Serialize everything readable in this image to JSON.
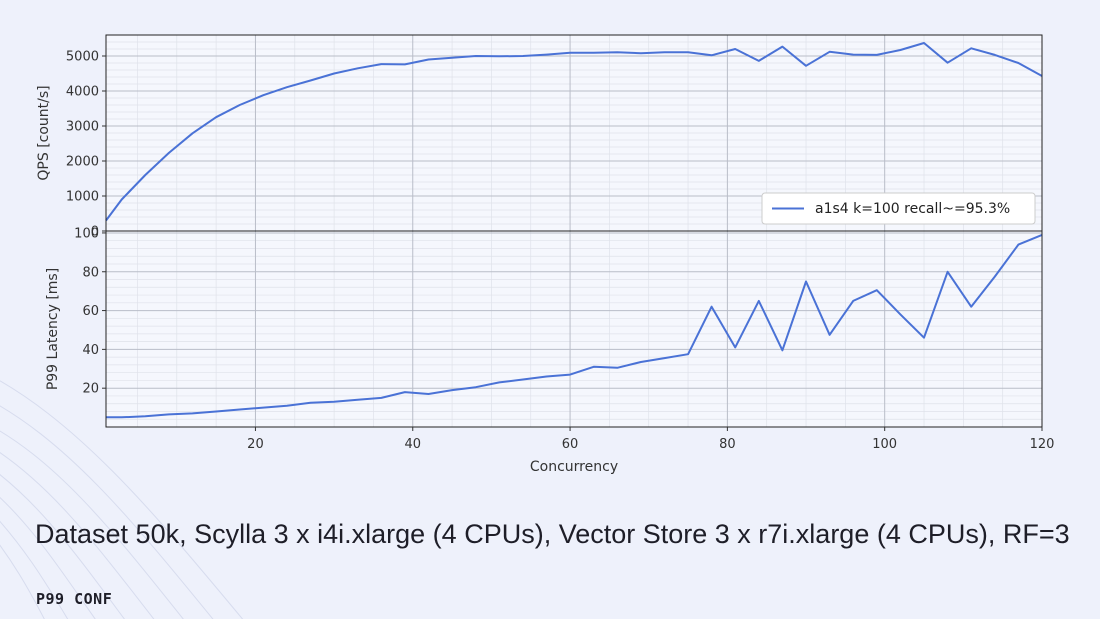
{
  "chart_data": {
    "type": "line",
    "xlabel": "Concurrency",
    "xlim": [
      1,
      120
    ],
    "x_ticks": [
      20,
      40,
      60,
      80,
      100,
      120
    ],
    "grid": true,
    "panels": [
      {
        "ylabel": "QPS [count/s]",
        "ylim": [
          0,
          5600
        ],
        "y_ticks": [
          0,
          1000,
          2000,
          3000,
          4000,
          5000
        ],
        "legend_position": "lower-right",
        "series": [
          {
            "name": "a1s4 k=100 recall~=95.3%",
            "color": "#4a72d6",
            "x": [
              1,
              3,
              6,
              9,
              12,
              15,
              18,
              21,
              24,
              27,
              30,
              33,
              36,
              39,
              42,
              45,
              48,
              51,
              54,
              57,
              60,
              63,
              66,
              69,
              72,
              75,
              78,
              81,
              84,
              87,
              90,
              93,
              96,
              99,
              102,
              105,
              108,
              111,
              114,
              117,
              120
            ],
            "y": [
              300,
              900,
              1600,
              2230,
              2790,
              3250,
              3600,
              3880,
              4110,
              4300,
              4500,
              4650,
              4770,
              4760,
              4900,
              4950,
              5000,
              4990,
              5000,
              5040,
              5090,
              5090,
              5110,
              5080,
              5110,
              5110,
              5020,
              5200,
              4860,
              5270,
              4720,
              5120,
              5040,
              5030,
              5170,
              5370,
              4810,
              5220,
              5030,
              4800,
              4430
            ]
          }
        ]
      },
      {
        "ylabel": "P99 Latency [ms]",
        "ylim": [
          0,
          101
        ],
        "y_ticks": [
          20,
          40,
          60,
          80,
          100
        ],
        "series": [
          {
            "name": "a1s4 k=100 recall~=95.3%",
            "color": "#4a72d6",
            "x": [
              1,
              3,
              6,
              9,
              12,
              15,
              18,
              21,
              24,
              27,
              30,
              33,
              36,
              39,
              42,
              45,
              48,
              51,
              54,
              57,
              60,
              63,
              66,
              69,
              72,
              75,
              78,
              81,
              84,
              87,
              90,
              93,
              96,
              99,
              102,
              105,
              108,
              111,
              114,
              117,
              120
            ],
            "y": [
              5,
              5,
              5.5,
              6.5,
              7,
              8,
              9,
              10,
              11,
              12.5,
              13,
              14,
              15,
              18,
              17,
              19,
              20.5,
              23,
              24.5,
              26,
              27,
              31,
              30.5,
              33.5,
              35.5,
              37.5,
              62,
              41,
              65,
              39.5,
              75,
              47.5,
              65,
              70.5,
              58,
              46,
              80,
              62,
              77.5,
              94,
              99
            ]
          }
        ]
      }
    ]
  },
  "caption": "Dataset 50k, Scylla 3 x i4i.xlarge (4 CPUs), Vector Store 3 x r7i.xlarge (4 CPUs), RF=3",
  "brand": "P99 CONF"
}
